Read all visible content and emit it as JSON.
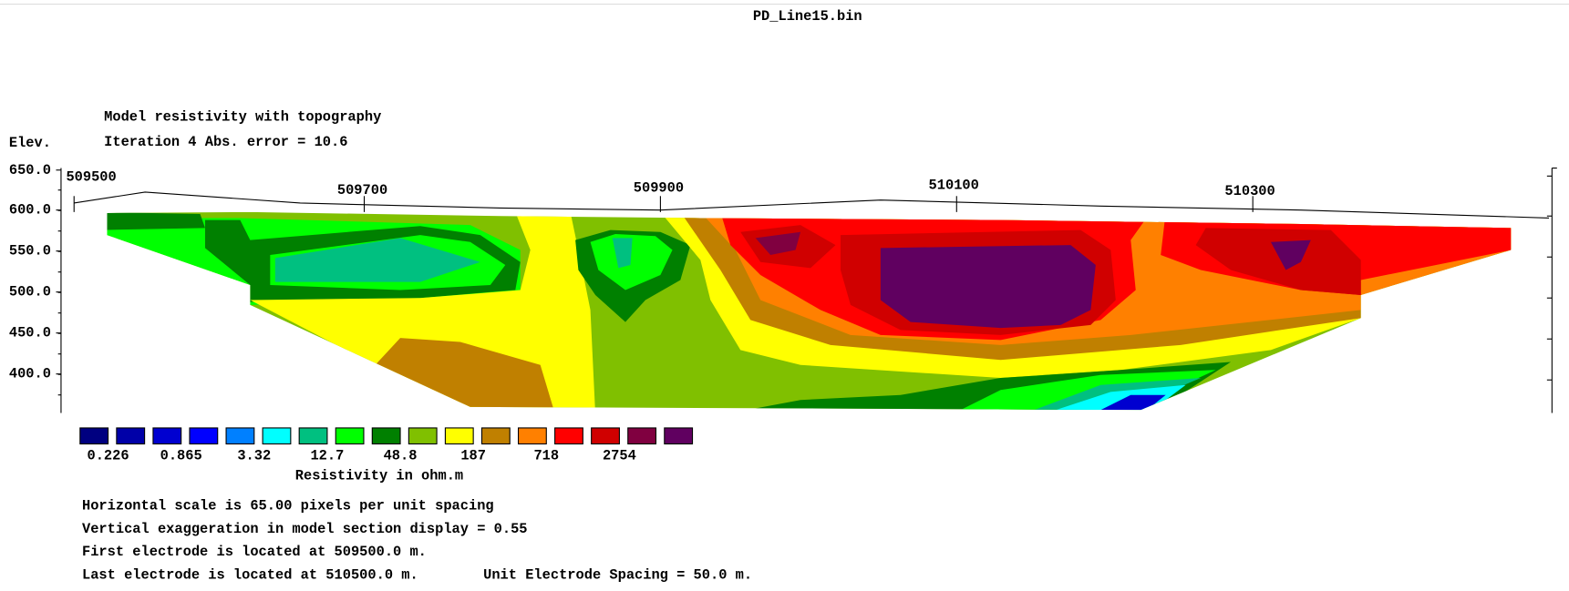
{
  "title": "PD_Line15.bin",
  "heading": "Model resistivity with topography",
  "iteration": "Iteration 4 Abs. error = 10.6",
  "y_axis_label": "Elev.",
  "elevations": [
    "650.0",
    "600.0",
    "550.0",
    "500.0",
    "450.0",
    "400.0"
  ],
  "distances": [
    "509500",
    "509700",
    "509900",
    "510100",
    "510300"
  ],
  "legend": {
    "colors": [
      "#000080",
      "#0000a8",
      "#0000d0",
      "#0000ff",
      "#0080ff",
      "#00ffff",
      "#00c080",
      "#00ff00",
      "#008000",
      "#80c000",
      "#ffff00",
      "#c08000",
      "#ff8000",
      "#ff0000",
      "#d00000",
      "#800040",
      "#600060"
    ],
    "labels": [
      "0.226",
      "0.865",
      "3.32",
      "12.7",
      "48.8",
      "187",
      "718",
      "2754"
    ],
    "caption": "Resistivity in ohm.m"
  },
  "notes": [
    "Horizontal scale is 65.00 pixels per unit spacing",
    "Vertical exaggeration in model section display = 0.55",
    "First electrode is located at 509500.0  m.",
    "Last electrode is located at 510500.0 m.",
    "Unit Electrode Spacing = 50.0 m."
  ]
}
